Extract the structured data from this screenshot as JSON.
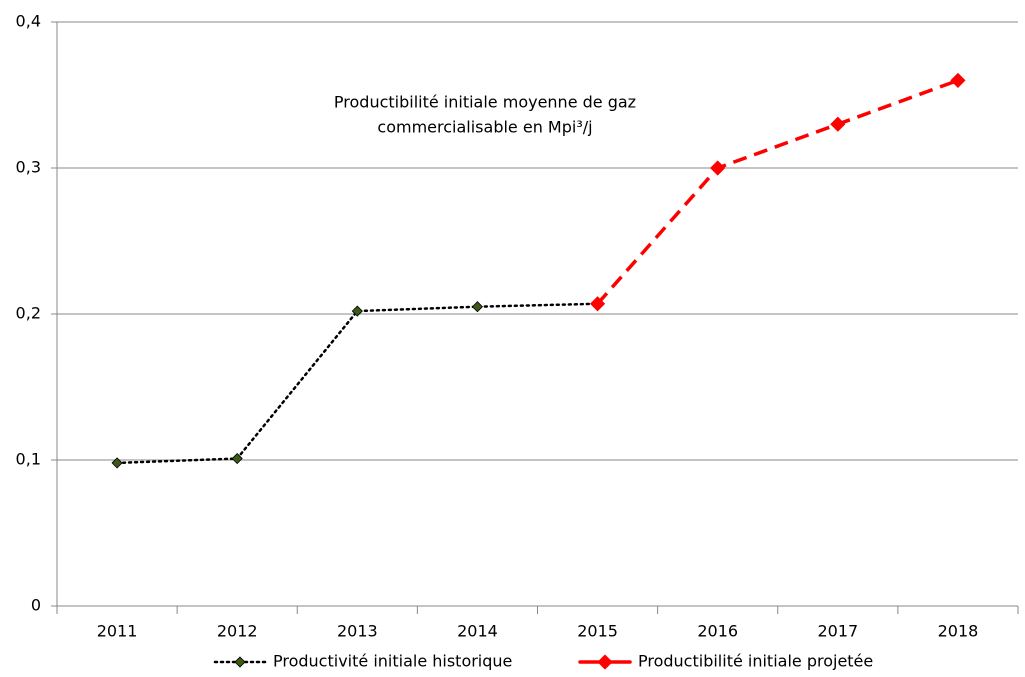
{
  "chart_data": {
    "type": "line",
    "title": [
      "Productibilité initiale  moyenne de gaz",
      "commercialisable en Mpi³/j"
    ],
    "categories": [
      "2011",
      "2012",
      "2013",
      "2014",
      "2015",
      "2016",
      "2017",
      "2018"
    ],
    "series": [
      {
        "name": "Productivité initiale historique",
        "color": "#000000",
        "marker_color": "#3b5a17",
        "dash": "dotted",
        "values": [
          0.098,
          0.101,
          0.202,
          0.205,
          0.207,
          null,
          null,
          null
        ]
      },
      {
        "name": "Productibilité initiale projetée",
        "color": "#ff0000",
        "marker_color": "#ff0000",
        "dash": "dashed",
        "values": [
          null,
          null,
          null,
          null,
          0.207,
          0.3,
          0.33,
          0.36
        ]
      }
    ],
    "ylim": [
      0,
      0.4
    ],
    "yticks": [
      0,
      {
        "value": 0.1,
        "label": "0,1"
      },
      {
        "value": 0.2,
        "label": "0,2"
      },
      {
        "value": 0.3,
        "label": "0,3"
      },
      {
        "value": 0.4,
        "label": "0,4"
      }
    ],
    "grid": true,
    "legend": "bottom"
  }
}
